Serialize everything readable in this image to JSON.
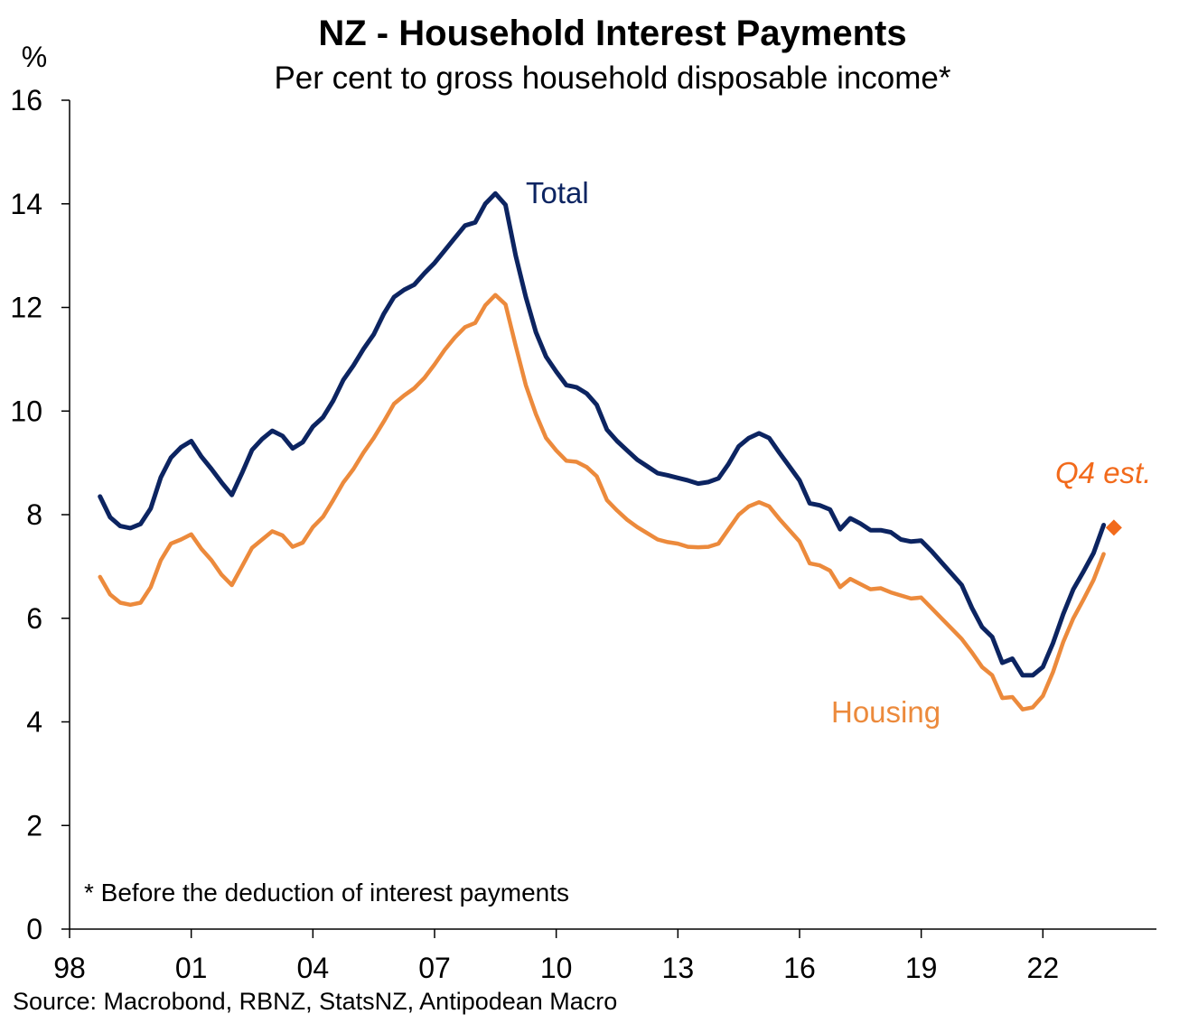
{
  "chart_data": {
    "type": "line",
    "title": "NZ - Household Interest Payments",
    "subtitle": "Per cent to gross household disposable income*",
    "ylabel": "%",
    "ylim": [
      0,
      16
    ],
    "yticks": [
      0,
      2,
      4,
      6,
      8,
      10,
      12,
      14,
      16
    ],
    "xlim": [
      1998,
      2024.8
    ],
    "xticks": [
      {
        "value": 1998,
        "label": "98"
      },
      {
        "value": 2001,
        "label": "01"
      },
      {
        "value": 2004,
        "label": "04"
      },
      {
        "value": 2007,
        "label": "07"
      },
      {
        "value": 2010,
        "label": "10"
      },
      {
        "value": 2013,
        "label": "13"
      },
      {
        "value": 2016,
        "label": "16"
      },
      {
        "value": 2019,
        "label": "19"
      },
      {
        "value": 2022,
        "label": "22"
      }
    ],
    "grid": false,
    "legend": "none",
    "x": [
      1998.75,
      1999.0,
      1999.25,
      1999.5,
      1999.75,
      2000.0,
      2000.25,
      2000.5,
      2000.75,
      2001.0,
      2001.25,
      2001.5,
      2001.75,
      2002.0,
      2002.25,
      2002.5,
      2002.75,
      2003.0,
      2003.25,
      2003.5,
      2003.75,
      2004.0,
      2004.25,
      2004.5,
      2004.75,
      2005.0,
      2005.25,
      2005.5,
      2005.75,
      2006.0,
      2006.25,
      2006.5,
      2006.75,
      2007.0,
      2007.25,
      2007.5,
      2007.75,
      2008.0,
      2008.25,
      2008.5,
      2008.75,
      2009.0,
      2009.25,
      2009.5,
      2009.75,
      2010.0,
      2010.25,
      2010.5,
      2010.75,
      2011.0,
      2011.25,
      2011.5,
      2011.75,
      2012.0,
      2012.25,
      2012.5,
      2012.75,
      2013.0,
      2013.25,
      2013.5,
      2013.75,
      2014.0,
      2014.25,
      2014.5,
      2014.75,
      2015.0,
      2015.25,
      2015.5,
      2015.75,
      2016.0,
      2016.25,
      2016.5,
      2016.75,
      2017.0,
      2017.25,
      2017.5,
      2017.75,
      2018.0,
      2018.25,
      2018.5,
      2018.75,
      2019.0,
      2019.25,
      2019.5,
      2019.75,
      2020.0,
      2020.25,
      2020.5,
      2020.75,
      2021.0,
      2021.25,
      2021.5,
      2021.75,
      2022.0,
      2022.25,
      2022.5,
      2022.75,
      2023.0,
      2023.25,
      2023.5
    ],
    "series": [
      {
        "name": "Total",
        "color": "#0c2461",
        "values": [
          8.35,
          7.95,
          7.78,
          7.74,
          7.82,
          8.12,
          8.72,
          9.1,
          9.3,
          9.42,
          9.12,
          8.88,
          8.62,
          8.38,
          8.8,
          9.25,
          9.46,
          9.62,
          9.52,
          9.28,
          9.4,
          9.7,
          9.88,
          10.2,
          10.6,
          10.88,
          11.2,
          11.48,
          11.88,
          12.2,
          12.34,
          12.44,
          12.66,
          12.86,
          13.1,
          13.34,
          13.58,
          13.64,
          14.0,
          14.2,
          13.98,
          13.0,
          12.2,
          11.52,
          11.05,
          10.76,
          10.5,
          10.46,
          10.34,
          10.12,
          9.64,
          9.42,
          9.24,
          9.06,
          8.93,
          8.8,
          8.76,
          8.71,
          8.66,
          8.6,
          8.63,
          8.7,
          8.98,
          9.32,
          9.48,
          9.57,
          9.48,
          9.2,
          8.93,
          8.66,
          8.22,
          8.18,
          8.1,
          7.72,
          7.93,
          7.83,
          7.7,
          7.7,
          7.66,
          7.52,
          7.48,
          7.5,
          7.3,
          7.08,
          6.86,
          6.64,
          6.2,
          5.83,
          5.64,
          5.14,
          5.22,
          4.9,
          4.9,
          5.06,
          5.52,
          6.08,
          6.56,
          6.9,
          7.26,
          7.8
        ]
      },
      {
        "name": "Housing",
        "color": "#ec8a3c",
        "values": [
          6.8,
          6.46,
          6.3,
          6.26,
          6.3,
          6.6,
          7.12,
          7.44,
          7.52,
          7.62,
          7.34,
          7.12,
          6.84,
          6.64,
          7.0,
          7.36,
          7.52,
          7.68,
          7.6,
          7.38,
          7.46,
          7.76,
          7.96,
          8.28,
          8.62,
          8.88,
          9.2,
          9.48,
          9.8,
          10.14,
          10.3,
          10.44,
          10.64,
          10.9,
          11.18,
          11.42,
          11.62,
          11.7,
          12.04,
          12.24,
          12.06,
          11.26,
          10.5,
          9.94,
          9.48,
          9.24,
          9.04,
          9.02,
          8.92,
          8.74,
          8.28,
          8.08,
          7.9,
          7.76,
          7.64,
          7.52,
          7.47,
          7.44,
          7.38,
          7.37,
          7.38,
          7.44,
          7.72,
          8.0,
          8.16,
          8.24,
          8.16,
          7.92,
          7.7,
          7.48,
          7.06,
          7.02,
          6.92,
          6.6,
          6.76,
          6.66,
          6.56,
          6.58,
          6.5,
          6.44,
          6.38,
          6.4,
          6.2,
          6.0,
          5.8,
          5.6,
          5.34,
          5.06,
          4.9,
          4.46,
          4.48,
          4.24,
          4.28,
          4.5,
          4.96,
          5.54,
          6.0,
          6.36,
          6.74,
          7.24
        ]
      }
    ],
    "markers": [
      {
        "series": "Housing",
        "label": "Q4 est.",
        "x": 2023.75,
        "y": 7.75,
        "shape": "diamond",
        "color": "#f26a1b"
      }
    ],
    "annotations": {
      "total_label": "Total",
      "housing_label": "Housing",
      "q4_label": "Q4 est.",
      "footnote": "* Before the deduction  of interest payments",
      "source": "Source: Macrobond, RBNZ, StatsNZ, Antipodean  Macro"
    }
  }
}
